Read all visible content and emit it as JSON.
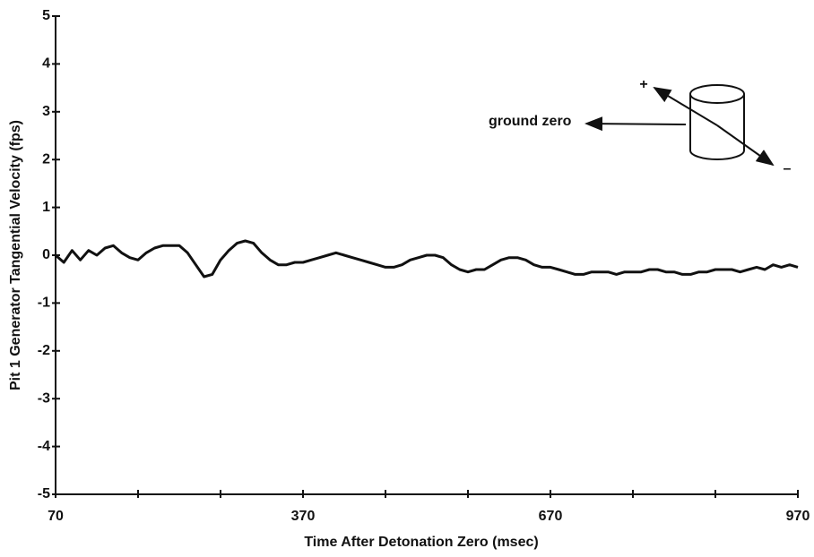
{
  "chart_data": {
    "type": "line",
    "x_label": "Time After Detonation Zero (msec)",
    "y_label": "Pit 1 Generator Tangential Velocity (fps)",
    "annotations": [
      "ground zero",
      "+",
      "–"
    ],
    "xlim": [
      70,
      970
    ],
    "xticks": [
      70,
      370,
      670,
      970
    ],
    "xminorticks": [
      170,
      270,
      470,
      570,
      770,
      870
    ],
    "ylim": [
      -5,
      5
    ],
    "yticks": [
      -5,
      -4,
      -3,
      -2,
      -1,
      0,
      1,
      2,
      3,
      4,
      5
    ],
    "color": "#111111",
    "x": [
      70,
      80,
      90,
      100,
      110,
      120,
      130,
      140,
      150,
      160,
      170,
      180,
      190,
      200,
      210,
      220,
      230,
      240,
      250,
      260,
      270,
      280,
      290,
      300,
      310,
      320,
      330,
      340,
      350,
      360,
      370,
      380,
      390,
      400,
      410,
      420,
      430,
      440,
      450,
      460,
      470,
      480,
      490,
      500,
      510,
      520,
      530,
      540,
      550,
      560,
      570,
      580,
      590,
      600,
      610,
      620,
      630,
      640,
      650,
      660,
      670,
      680,
      690,
      700,
      710,
      720,
      730,
      740,
      750,
      760,
      770,
      780,
      790,
      800,
      810,
      820,
      830,
      840,
      850,
      860,
      870,
      880,
      890,
      900,
      910,
      920,
      930,
      940,
      950,
      960,
      970
    ],
    "values": [
      0.0,
      -0.15,
      0.1,
      -0.1,
      0.1,
      0.0,
      0.15,
      0.2,
      0.05,
      -0.05,
      -0.1,
      0.05,
      0.15,
      0.2,
      0.2,
      0.2,
      0.05,
      -0.2,
      -0.45,
      -0.4,
      -0.1,
      0.1,
      0.25,
      0.3,
      0.25,
      0.05,
      -0.1,
      -0.2,
      -0.2,
      -0.15,
      -0.15,
      -0.1,
      -0.05,
      0.0,
      0.05,
      0.0,
      -0.05,
      -0.1,
      -0.15,
      -0.2,
      -0.25,
      -0.25,
      -0.2,
      -0.1,
      -0.05,
      0.0,
      0.0,
      -0.05,
      -0.2,
      -0.3,
      -0.35,
      -0.3,
      -0.3,
      -0.2,
      -0.1,
      -0.05,
      -0.05,
      -0.1,
      -0.2,
      -0.25,
      -0.25,
      -0.3,
      -0.35,
      -0.4,
      -0.4,
      -0.35,
      -0.35,
      -0.35,
      -0.4,
      -0.35,
      -0.35,
      -0.35,
      -0.3,
      -0.3,
      -0.35,
      -0.35,
      -0.4,
      -0.4,
      -0.35,
      -0.35,
      -0.3,
      -0.3,
      -0.3,
      -0.35,
      -0.3,
      -0.25,
      -0.3,
      -0.2,
      -0.25,
      -0.2,
      -0.25
    ]
  }
}
